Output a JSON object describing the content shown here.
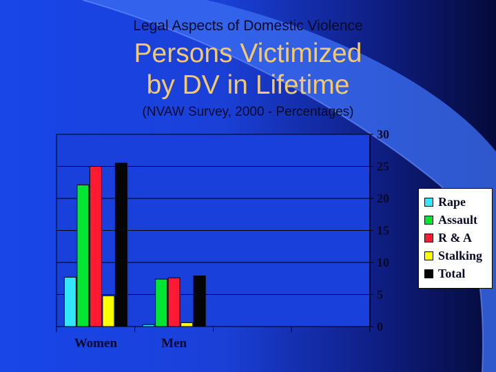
{
  "slide": {
    "kicker": "Legal Aspects of Domestic Violence",
    "title_line1": "Persons Victimized",
    "title_line2": "by DV in Lifetime",
    "subtitle": "(NVAW Survey, 2000  - Percentages)"
  },
  "chart_data": {
    "type": "bar",
    "title": "",
    "xlabel": "",
    "ylabel": "",
    "categories": [
      "Women",
      "Men"
    ],
    "series": [
      {
        "name": "Rape",
        "color": "#33e6ff",
        "values": [
          7.7,
          0.3
        ]
      },
      {
        "name": "Assault",
        "color": "#00e632",
        "values": [
          22.1,
          7.4
        ]
      },
      {
        "name": "R  &  A",
        "color": "#ff1a33",
        "values": [
          25,
          7.6
        ]
      },
      {
        "name": "Stalking",
        "color": "#ffff00",
        "values": [
          4.8,
          0.6
        ]
      },
      {
        "name": "Total",
        "color": "#050505",
        "values": [
          25.5,
          7.9
        ]
      }
    ],
    "ylim": [
      0,
      30
    ],
    "yticks": [
      0,
      5,
      10,
      15,
      20,
      25,
      30
    ],
    "grid": true,
    "legend_position": "right"
  }
}
